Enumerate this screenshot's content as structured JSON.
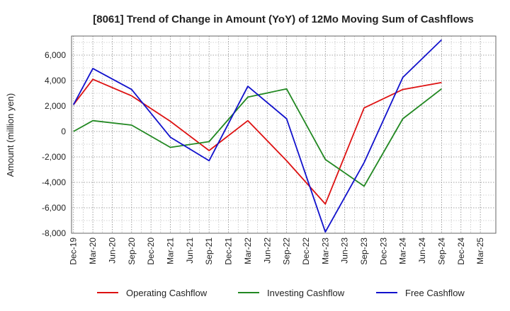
{
  "chart_data": {
    "type": "line",
    "title": "[8061]  Trend of Change in Amount (YoY) of 12Mo Moving Sum of Cashflows",
    "xlabel": "",
    "ylabel": "Amount (million yen)",
    "ylim": [
      -8000,
      7500
    ],
    "yticks": [
      6000,
      4000,
      2000,
      0,
      -2000,
      -4000,
      -6000,
      -8000
    ],
    "ytick_labels": [
      "6,000",
      "4,000",
      "2,000",
      "0",
      "-2,000",
      "-4,000",
      "-6,000",
      "-8,000"
    ],
    "categories": [
      "Dec-19",
      "Mar-20",
      "Jun-20",
      "Sep-20",
      "Dec-20",
      "Mar-21",
      "Jun-21",
      "Sep-21",
      "Dec-21",
      "Mar-22",
      "Jun-22",
      "Sep-22",
      "Dec-22",
      "Mar-23",
      "Jun-23",
      "Sep-23",
      "Dec-23",
      "Mar-24",
      "Jun-24",
      "Sep-24",
      "Dec-24",
      "Mar-25"
    ],
    "grid": true,
    "legend_position": "bottom",
    "series": [
      {
        "name": "Operating Cashflow",
        "color": "#dd1111",
        "values": [
          2100,
          4100,
          null,
          2800,
          null,
          800,
          null,
          -1500,
          null,
          850,
          null,
          -2300,
          null,
          -5700,
          null,
          1850,
          null,
          3300,
          null,
          3850,
          null,
          null
        ]
      },
      {
        "name": "Investing Cashflow",
        "color": "#228822",
        "values": [
          0,
          850,
          null,
          500,
          null,
          -1250,
          null,
          -800,
          null,
          2700,
          null,
          3350,
          null,
          -2200,
          null,
          -4300,
          null,
          1000,
          null,
          3350,
          null,
          null
        ]
      },
      {
        "name": "Free Cashflow",
        "color": "#1111cc",
        "values": [
          2100,
          4950,
          null,
          3300,
          null,
          -450,
          null,
          -2300,
          null,
          3550,
          null,
          1000,
          null,
          -7900,
          null,
          -2450,
          null,
          4250,
          null,
          7200,
          null,
          null
        ]
      }
    ]
  }
}
